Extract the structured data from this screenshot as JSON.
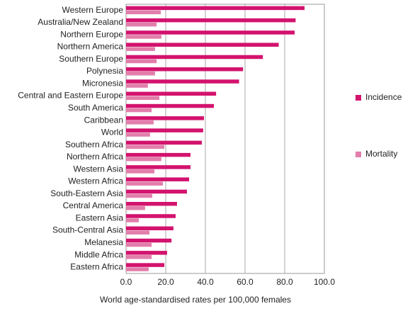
{
  "chart_data": {
    "type": "hbar",
    "xlabel": "World age-standardised rates per 100,000 females",
    "categories": [
      "Western Europe",
      "Australia/New Zealand",
      "Northern Europe",
      "Northern America",
      "Southern Europe",
      "Polynesia",
      "Micronesia",
      "Central and Eastern Europe",
      "South America",
      "Caribbean",
      "World",
      "Southern Africa",
      "Northern Africa",
      "Western Asia",
      "Western Africa",
      "South-Eastern Asia",
      "Central America",
      "Eastern Asia",
      "South-Central Asia",
      "Melanesia",
      "Middle Africa",
      "Eastern Africa"
    ],
    "series": [
      {
        "name": "Incidence",
        "color": "#d3136e",
        "values": [
          90,
          85.5,
          85,
          77,
          69,
          59,
          57,
          45.4,
          44.3,
          39.3,
          38.9,
          38.2,
          32.5,
          32.5,
          31.8,
          30.7,
          25.7,
          25,
          23.9,
          22.9,
          20.7,
          19.3
        ]
      },
      {
        "name": "Mortality",
        "color": "#e27eab",
        "values": [
          17.5,
          15.4,
          17.8,
          14.6,
          15.4,
          14.6,
          11,
          16.8,
          12.9,
          13.9,
          12.1,
          19.3,
          17.8,
          14.3,
          18.6,
          13.2,
          9.6,
          6.4,
          11.8,
          12.9,
          12.9,
          11.4
        ]
      }
    ],
    "xlim": [
      0,
      100
    ],
    "xticks": [
      {
        "value": 0,
        "label": "0.0"
      },
      {
        "value": 20,
        "label": "20.0"
      },
      {
        "value": 40,
        "label": "40.0"
      },
      {
        "value": 60,
        "label": "60.0"
      },
      {
        "value": 80,
        "label": "80.0"
      },
      {
        "value": 100,
        "label": "100.0"
      }
    ],
    "grid": true,
    "legend": "right"
  }
}
